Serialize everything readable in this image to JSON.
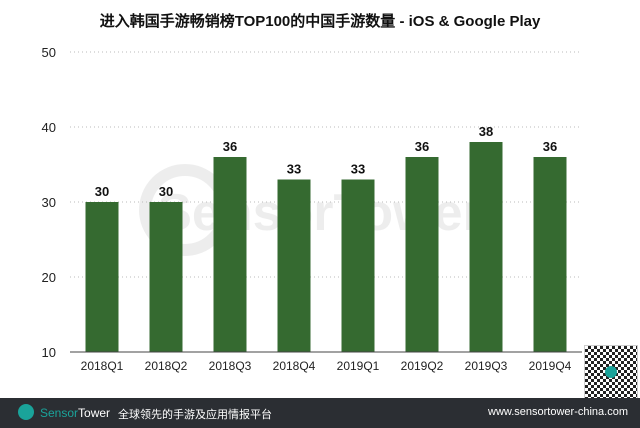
{
  "chart_data": {
    "type": "bar",
    "title": "进入韩国手游畅销榜TOP100的中国手游数量 - iOS & Google Play",
    "categories": [
      "2018Q1",
      "2018Q2",
      "2018Q3",
      "2018Q4",
      "2019Q1",
      "2019Q2",
      "2019Q3",
      "2019Q4"
    ],
    "values": [
      30,
      30,
      36,
      33,
      33,
      36,
      38,
      36
    ],
    "ylim": [
      10,
      50
    ],
    "yticks": [
      10,
      20,
      30,
      40,
      50
    ],
    "grid": true,
    "bar_color": "#356a30",
    "xlabel": "",
    "ylabel": ""
  },
  "watermark": "SensorTower",
  "footer": {
    "brand_a": "Sensor",
    "brand_b": "Tower",
    "slogan": "全球领先的手游及应用情报平台",
    "url": "www.sensortower-china.com"
  }
}
